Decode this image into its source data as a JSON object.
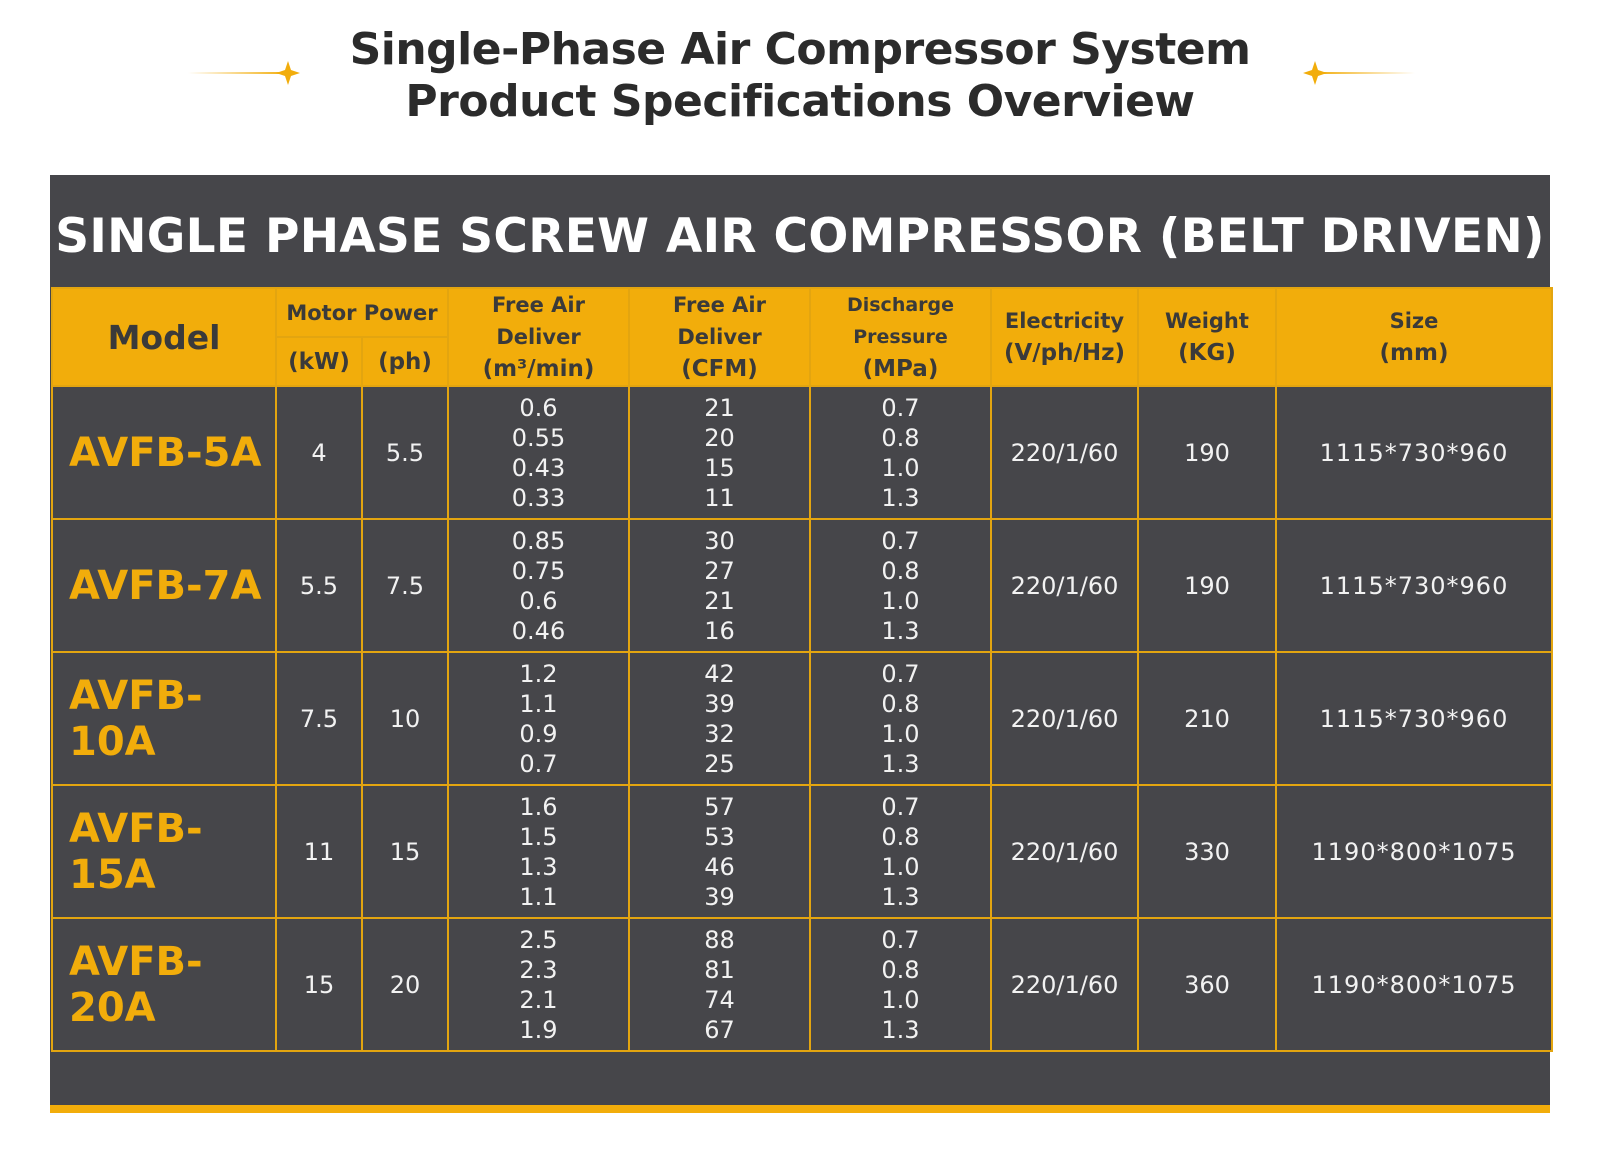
{
  "page": {
    "title_line1": "Single-Phase Air Compressor System",
    "title_line2": "Product Specifications Overview",
    "accent_color": "#f2ad0b",
    "panel_color": "#46464a"
  },
  "panel": {
    "heading": "SINGLE PHASE SCREW AIR COMPRESSOR (BELT DRIVEN)"
  },
  "table": {
    "headers": {
      "model": "Model",
      "motor_power": "Motor Power",
      "kw": "(kW)",
      "ph": "(ph)",
      "fad_m3": "Free Air Deliver",
      "fad_m3_unit": "(m³/min)",
      "fad_cfm": "Free Air Deliver",
      "fad_cfm_unit": "(CFM)",
      "pressure": "Discharge Pressure",
      "pressure_unit": "(MPa)",
      "electricity": "Electricity",
      "electricity_unit": "(V/ph/Hz)",
      "weight": "Weight",
      "weight_unit": "(KG)",
      "size": "Size",
      "size_unit": "(mm)"
    },
    "rows": [
      {
        "model": "AVFB-5A",
        "kw": "4",
        "ph": "5.5",
        "fad_m3": [
          "0.6",
          "0.55",
          "0.43",
          "0.33"
        ],
        "fad_cfm": [
          "21",
          "20",
          "15",
          "11"
        ],
        "pressure": [
          "0.7",
          "0.8",
          "1.0",
          "1.3"
        ],
        "electricity": "220/1/60",
        "weight": "190",
        "size": "1115*730*960"
      },
      {
        "model": "AVFB-7A",
        "kw": "5.5",
        "ph": "7.5",
        "fad_m3": [
          "0.85",
          "0.75",
          "0.6",
          "0.46"
        ],
        "fad_cfm": [
          "30",
          "27",
          "21",
          "16"
        ],
        "pressure": [
          "0.7",
          "0.8",
          "1.0",
          "1.3"
        ],
        "electricity": "220/1/60",
        "weight": "190",
        "size": "1115*730*960"
      },
      {
        "model": "AVFB-10A",
        "kw": "7.5",
        "ph": "10",
        "fad_m3": [
          "1.2",
          "1.1",
          "0.9",
          "0.7"
        ],
        "fad_cfm": [
          "42",
          "39",
          "32",
          "25"
        ],
        "pressure": [
          "0.7",
          "0.8",
          "1.0",
          "1.3"
        ],
        "electricity": "220/1/60",
        "weight": "210",
        "size": "1115*730*960"
      },
      {
        "model": "AVFB-15A",
        "kw": "11",
        "ph": "15",
        "fad_m3": [
          "1.6",
          "1.5",
          "1.3",
          "1.1"
        ],
        "fad_cfm": [
          "57",
          "53",
          "46",
          "39"
        ],
        "pressure": [
          "0.7",
          "0.8",
          "1.0",
          "1.3"
        ],
        "electricity": "220/1/60",
        "weight": "330",
        "size": "1190*800*1075"
      },
      {
        "model": "AVFB-20A",
        "kw": "15",
        "ph": "20",
        "fad_m3": [
          "2.5",
          "2.3",
          "2.1",
          "1.9"
        ],
        "fad_cfm": [
          "88",
          "81",
          "74",
          "67"
        ],
        "pressure": [
          "0.7",
          "0.8",
          "1.0",
          "1.3"
        ],
        "electricity": "220/1/60",
        "weight": "360",
        "size": "1190*800*1075"
      }
    ]
  }
}
